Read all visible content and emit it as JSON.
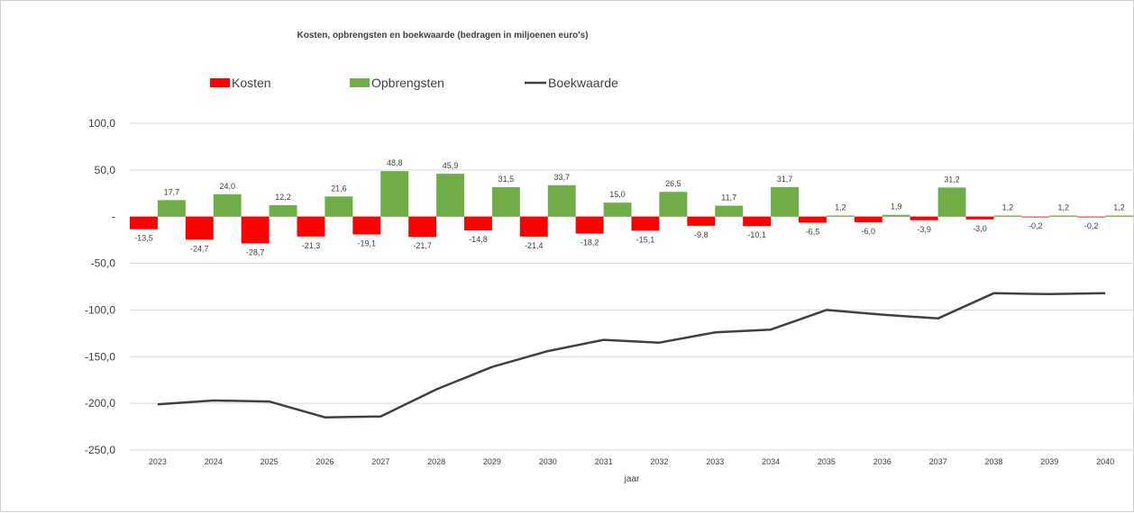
{
  "chart_data": {
    "type": "bar",
    "title": "Kosten, opbrengsten en boekwaarde (bedragen in miljoenen euro's)",
    "xlabel": "jaar",
    "ylabel": "",
    "ylim": [
      -250,
      100
    ],
    "y_ticks": [
      "100,0",
      "50,0",
      "-",
      "-50,0",
      "-100,0",
      "-150,0",
      "-200,0",
      "-250,0"
    ],
    "y_tick_values": [
      100,
      50,
      0,
      -50,
      -100,
      -150,
      -200,
      -250
    ],
    "grid": true,
    "legend_position": "top",
    "categories": [
      "2023",
      "2024",
      "2025",
      "2026",
      "2027",
      "2028",
      "2029",
      "2030",
      "2031",
      "2032",
      "2033",
      "2034",
      "2035",
      "2036",
      "2037",
      "2038",
      "2039",
      "2040"
    ],
    "series": [
      {
        "name": "Kosten",
        "kind": "bar",
        "color": "#ff0000",
        "values": [
          -13.5,
          -24.7,
          -28.7,
          -21.3,
          -19.1,
          -21.7,
          -14.8,
          -21.4,
          -18.2,
          -15.1,
          -9.8,
          -10.1,
          -6.5,
          -6.0,
          -3.9,
          -3.0,
          -0.2,
          -0.2
        ],
        "labels": [
          "-13,5",
          "-24,7",
          "-28,7",
          "-21,3",
          "-19,1",
          "-21,7",
          "-14,8",
          "-21,4",
          "-18,2",
          "-15,1",
          "-9,8",
          "-10,1",
          "-6,5",
          "-6,0",
          "-3,9",
          "-3,0",
          "-0,2",
          "-0,2"
        ]
      },
      {
        "name": "Opbrengsten",
        "kind": "bar",
        "color": "#70ad47",
        "values": [
          17.7,
          24.0,
          12.2,
          21.6,
          48.8,
          45.9,
          31.5,
          33.7,
          15.0,
          26.5,
          11.7,
          31.7,
          1.2,
          1.9,
          31.2,
          1.2,
          1.2,
          1.2
        ],
        "labels": [
          "17,7",
          "24,0",
          "12,2",
          "21,6",
          "48,8",
          "45,9",
          "31,5",
          "33,7",
          "15,0",
          "26,5",
          "11,7",
          "31,7",
          "1,2",
          "1,9",
          "31,2",
          "1,2",
          "1,2",
          "1,2"
        ]
      },
      {
        "name": "Boekwaarde",
        "kind": "line",
        "color": "#404040",
        "values": [
          -201,
          -197,
          -198,
          -215,
          -214,
          -185,
          -161,
          -144,
          -132,
          -135,
          -124,
          -121,
          -100,
          -105,
          -109,
          -82,
          -83,
          -82
        ]
      }
    ]
  }
}
